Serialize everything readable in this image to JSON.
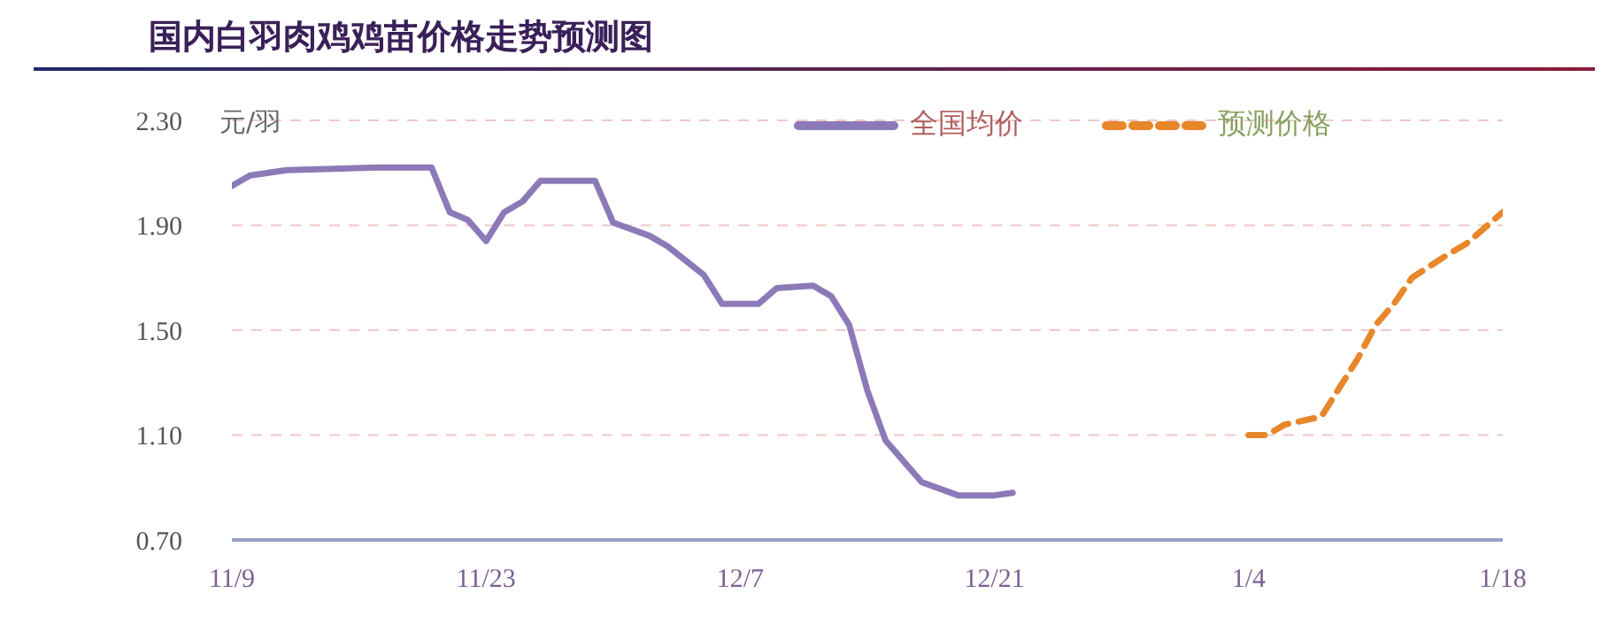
{
  "chart_data": {
    "type": "line",
    "title": "国内白羽肉鸡鸡苗价格走势预测图",
    "ylabel": "元/羽",
    "categories": [
      "11/9",
      null,
      null,
      null,
      null,
      null,
      null,
      null,
      null,
      null,
      null,
      null,
      null,
      null,
      "11/23",
      null,
      null,
      null,
      null,
      null,
      null,
      null,
      null,
      null,
      null,
      null,
      null,
      null,
      "12/7",
      null,
      null,
      null,
      null,
      null,
      null,
      null,
      null,
      null,
      null,
      null,
      null,
      null,
      "12/21",
      null,
      null,
      null,
      null,
      null,
      null,
      null,
      null,
      null,
      null,
      null,
      null,
      null,
      "1/4",
      null,
      null,
      null,
      null,
      null,
      null,
      null,
      null,
      null,
      null,
      null,
      null,
      null,
      "1/18"
    ],
    "series": [
      {
        "name": "全国均价",
        "color": "#8c7ab8",
        "line_style": "solid",
        "values": [
          2.05,
          2.09,
          null,
          2.11,
          null,
          null,
          null,
          null,
          2.12,
          null,
          null,
          2.12,
          1.95,
          1.92,
          1.84,
          1.95,
          1.99,
          2.07,
          null,
          null,
          2.07,
          1.91,
          null,
          1.86,
          1.82,
          null,
          1.71,
          1.6,
          null,
          1.6,
          1.66,
          null,
          1.67,
          1.63,
          1.52,
          1.27,
          1.08,
          null,
          0.92,
          null,
          0.87,
          null,
          0.87,
          0.88,
          null,
          null,
          null,
          null,
          null,
          null,
          null,
          null,
          null,
          null,
          null,
          null,
          null,
          null,
          null,
          null,
          null,
          null,
          null,
          null,
          null,
          null,
          null,
          null,
          null,
          null,
          null
        ]
      },
      {
        "name": "预测价格",
        "color": "#e8862a",
        "line_style": "dashed",
        "values": [
          null,
          null,
          null,
          null,
          null,
          null,
          null,
          null,
          null,
          null,
          null,
          null,
          null,
          null,
          null,
          null,
          null,
          null,
          null,
          null,
          null,
          null,
          null,
          null,
          null,
          null,
          null,
          null,
          null,
          null,
          null,
          null,
          null,
          null,
          null,
          null,
          null,
          null,
          null,
          null,
          null,
          null,
          null,
          null,
          null,
          null,
          null,
          null,
          null,
          null,
          null,
          null,
          null,
          null,
          null,
          null,
          1.1,
          1.1,
          1.14,
          null,
          1.17,
          1.28,
          1.39,
          1.52,
          1.6,
          1.7,
          null,
          1.79,
          1.83,
          null,
          1.95
        ]
      }
    ],
    "ylim": [
      0.7,
      2.3
    ],
    "yticks": [
      {
        "value": 0.7,
        "label": "0.70"
      },
      {
        "value": 1.1,
        "label": "1.10"
      },
      {
        "value": 1.5,
        "label": "1.50"
      },
      {
        "value": 1.9,
        "label": "1.90"
      },
      {
        "value": 2.3,
        "label": "2.30"
      }
    ],
    "grid": "y",
    "legend": "top",
    "marker": "none"
  }
}
